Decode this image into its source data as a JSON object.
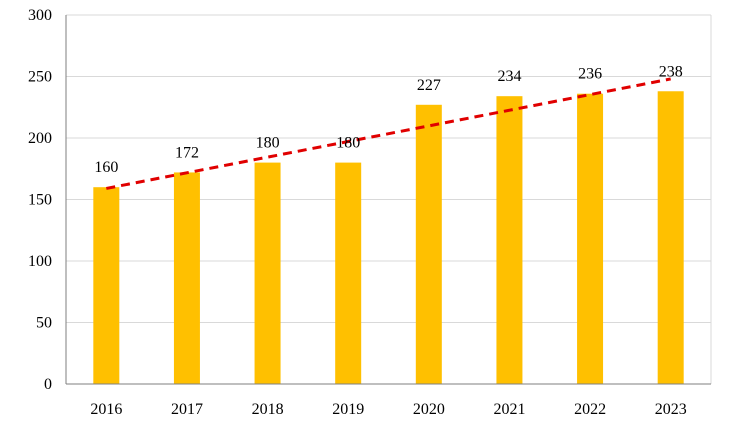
{
  "chart_data": {
    "type": "bar",
    "categories": [
      "2016",
      "2017",
      "2018",
      "2019",
      "2020",
      "2021",
      "2022",
      "2023"
    ],
    "values": [
      160,
      172,
      180,
      180,
      227,
      234,
      236,
      238
    ],
    "data_labels": [
      "160",
      "172",
      "180",
      "180",
      "227",
      "234",
      "236",
      "238"
    ],
    "y_ticks": [
      "0",
      "50",
      "100",
      "150",
      "200",
      "250",
      "300"
    ],
    "ylim": [
      0,
      300
    ],
    "grid": true,
    "legend": "none",
    "trendline": {
      "type": "linear",
      "style": "dashed",
      "start": 159,
      "end": 248
    },
    "colors": {
      "bar": "#FFC000",
      "trendline": "#E00000",
      "grid": "#D9D9D9",
      "axis": "#7F7F7F"
    }
  }
}
